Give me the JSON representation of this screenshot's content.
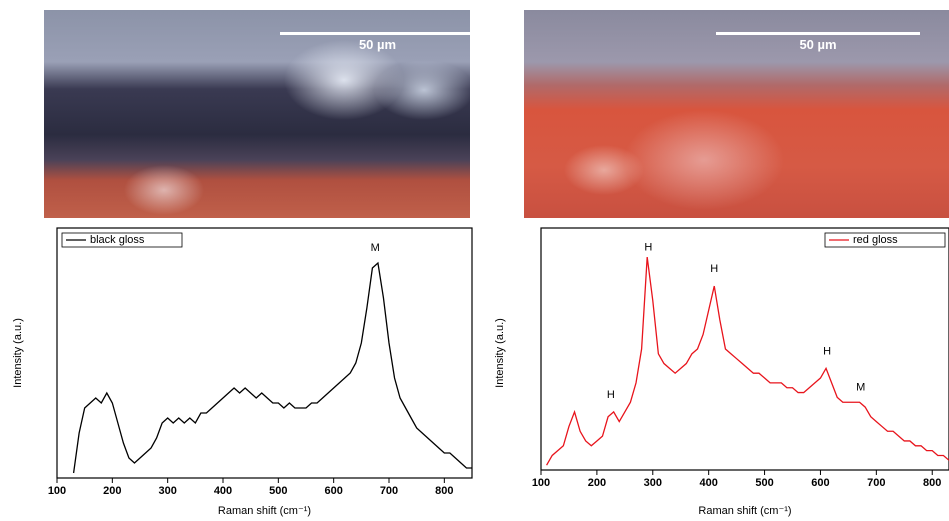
{
  "images": [
    {
      "scale_bar": "50 µm"
    },
    {
      "scale_bar": "50 µm"
    }
  ],
  "chart_data": [
    {
      "type": "line",
      "xlabel": "Raman shift (cm⁻¹)",
      "ylabel": "Intensity (a.u.)",
      "xlim": [
        100,
        850
      ],
      "xticks": [
        100,
        200,
        300,
        400,
        500,
        600,
        700,
        800
      ],
      "ylim": [
        0,
        100
      ],
      "legend": "top-left",
      "annotations": [
        "M"
      ],
      "x": [
        130,
        140,
        150,
        160,
        170,
        180,
        190,
        200,
        210,
        220,
        230,
        240,
        250,
        260,
        270,
        280,
        290,
        300,
        310,
        320,
        330,
        340,
        350,
        360,
        370,
        380,
        390,
        400,
        410,
        420,
        430,
        440,
        450,
        460,
        470,
        480,
        490,
        500,
        510,
        520,
        530,
        540,
        550,
        560,
        570,
        580,
        590,
        600,
        610,
        620,
        630,
        640,
        650,
        660,
        670,
        680,
        690,
        700,
        710,
        720,
        730,
        740,
        750,
        760,
        770,
        780,
        790,
        800,
        810,
        820,
        830,
        840,
        850
      ],
      "series": [
        {
          "name": "black gloss",
          "color": "#000000",
          "values": [
            2,
            18,
            28,
            30,
            32,
            30,
            34,
            30,
            22,
            14,
            8,
            6,
            8,
            10,
            12,
            16,
            22,
            24,
            22,
            24,
            22,
            24,
            22,
            26,
            26,
            28,
            30,
            32,
            34,
            36,
            34,
            36,
            34,
            32,
            34,
            32,
            30,
            30,
            28,
            30,
            28,
            28,
            28,
            30,
            30,
            32,
            34,
            36,
            38,
            40,
            42,
            46,
            54,
            68,
            84,
            86,
            72,
            54,
            40,
            32,
            28,
            24,
            20,
            18,
            16,
            14,
            12,
            10,
            10,
            8,
            6,
            4,
            4
          ]
        }
      ]
    },
    {
      "type": "line",
      "xlabel": "Raman shift (cm⁻¹)",
      "ylabel": "Intensity (a.u.)",
      "xlim": [
        100,
        830
      ],
      "xticks": [
        100,
        200,
        300,
        400,
        500,
        600,
        700,
        800
      ],
      "ylim": [
        0,
        100
      ],
      "legend": "top-right",
      "annotations": [
        "H",
        "H",
        "H",
        "H",
        "M"
      ],
      "x": [
        110,
        120,
        130,
        140,
        150,
        160,
        170,
        180,
        190,
        200,
        210,
        220,
        230,
        240,
        250,
        260,
        270,
        280,
        290,
        300,
        310,
        320,
        330,
        340,
        350,
        360,
        370,
        380,
        390,
        400,
        410,
        420,
        430,
        440,
        450,
        460,
        470,
        480,
        490,
        500,
        510,
        520,
        530,
        540,
        550,
        560,
        570,
        580,
        590,
        600,
        610,
        620,
        630,
        640,
        650,
        660,
        670,
        680,
        690,
        700,
        710,
        720,
        730,
        740,
        750,
        760,
        770,
        780,
        790,
        800,
        810,
        820,
        830
      ],
      "series": [
        {
          "name": "red gloss",
          "color": "#e8141c",
          "values": [
            2,
            6,
            8,
            10,
            18,
            24,
            16,
            12,
            10,
            12,
            14,
            22,
            24,
            20,
            24,
            28,
            36,
            50,
            88,
            70,
            48,
            44,
            42,
            40,
            42,
            44,
            48,
            50,
            56,
            66,
            76,
            62,
            50,
            48,
            46,
            44,
            42,
            40,
            40,
            38,
            36,
            36,
            36,
            34,
            34,
            32,
            32,
            34,
            36,
            38,
            42,
            36,
            30,
            28,
            28,
            28,
            28,
            26,
            22,
            20,
            18,
            16,
            16,
            14,
            12,
            12,
            10,
            10,
            8,
            8,
            6,
            6,
            4
          ]
        }
      ]
    }
  ]
}
